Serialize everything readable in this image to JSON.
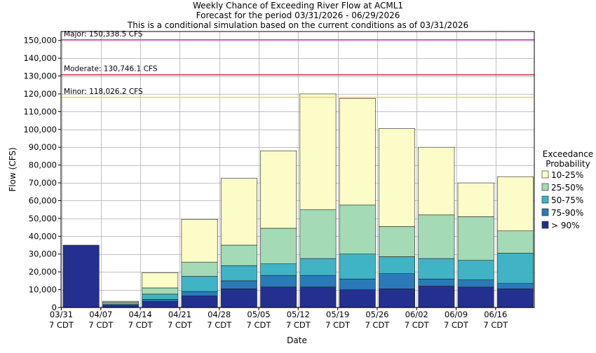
{
  "title_lines": [
    "Weekly Chance of Exceeding River Flow at ACML1",
    "Forecast for the period 03/31/2026 - 06/29/2026",
    "This is a conditional simulation based on the current conditions as of 03/31/2026"
  ],
  "colors": {
    "gt90": "#24308f",
    "p75_90": "#2a7ab8",
    "p50_75": "#40b3c4",
    "p25_50": "#a4dab5",
    "p10_25": "#fbfcc8",
    "major": "#c040c0",
    "moderate": "#cc3344",
    "minor": "#e8d860",
    "grid": "#c0c0c0"
  },
  "chart_data": {
    "type": "bar",
    "stacked": true,
    "xlabel": "Date",
    "ylabel": "Flow (CFS)",
    "ylim": [
      0,
      155000
    ],
    "yticks": [
      0,
      10000,
      20000,
      30000,
      40000,
      50000,
      60000,
      70000,
      80000,
      90000,
      100000,
      110000,
      120000,
      130000,
      140000,
      150000
    ],
    "ytick_labels": [
      "0",
      "10,000",
      "20,000",
      "30,000",
      "40,000",
      "50,000",
      "60,000",
      "70,000",
      "80,000",
      "90,000",
      "100,000",
      "110,000",
      "120,000",
      "130,000",
      "140,000",
      "150,000"
    ],
    "categories": [
      "03/31",
      "04/07",
      "04/14",
      "04/21",
      "04/28",
      "05/05",
      "05/12",
      "05/19",
      "05/26",
      "06/02",
      "06/09",
      "06/16"
    ],
    "category_sub": "7 CDT",
    "grid": true,
    "legend_title": [
      "Exceedance",
      "Probability"
    ],
    "legend_position": "right",
    "series": [
      {
        "name": "> 90%",
        "color_key": "gt90",
        "tops": [
          35000,
          1000,
          3500,
          6500,
          10500,
          11500,
          11500,
          10000,
          10500,
          12000,
          11500,
          10500
        ]
      },
      {
        "name": "75-90%",
        "color_key": "p75_90",
        "tops": [
          35000,
          1500,
          4500,
          9000,
          15000,
          18000,
          18000,
          16000,
          19000,
          16000,
          15500,
          13500
        ]
      },
      {
        "name": "50-75%",
        "color_key": "p50_75",
        "tops": [
          35000,
          2000,
          7500,
          17500,
          23500,
          24500,
          27500,
          30000,
          28500,
          27500,
          26500,
          30500
        ]
      },
      {
        "name": "25-50%",
        "color_key": "p25_50",
        "tops": [
          35000,
          3000,
          11000,
          25500,
          35000,
          44500,
          55000,
          57500,
          45500,
          52000,
          51000,
          43000
        ]
      },
      {
        "name": "10-25%",
        "color_key": "p10_25",
        "tops": [
          35000,
          3500,
          19500,
          49500,
          72500,
          88000,
          120000,
          117500,
          100500,
          90000,
          70000,
          73500
        ]
      }
    ],
    "legend_order": [
      "10-25%",
      "25-50%",
      "50-75%",
      "75-90%",
      "> 90%"
    ],
    "thresholds": [
      {
        "label": "Major: 150,338.5 CFS",
        "value": 150338.5,
        "color_key": "major"
      },
      {
        "label": "Moderate: 130,746.1 CFS",
        "value": 130746.1,
        "color_key": "moderate"
      },
      {
        "label": "Minor: 118,026.2 CFS",
        "value": 118026.2,
        "color_key": "minor"
      }
    ]
  }
}
